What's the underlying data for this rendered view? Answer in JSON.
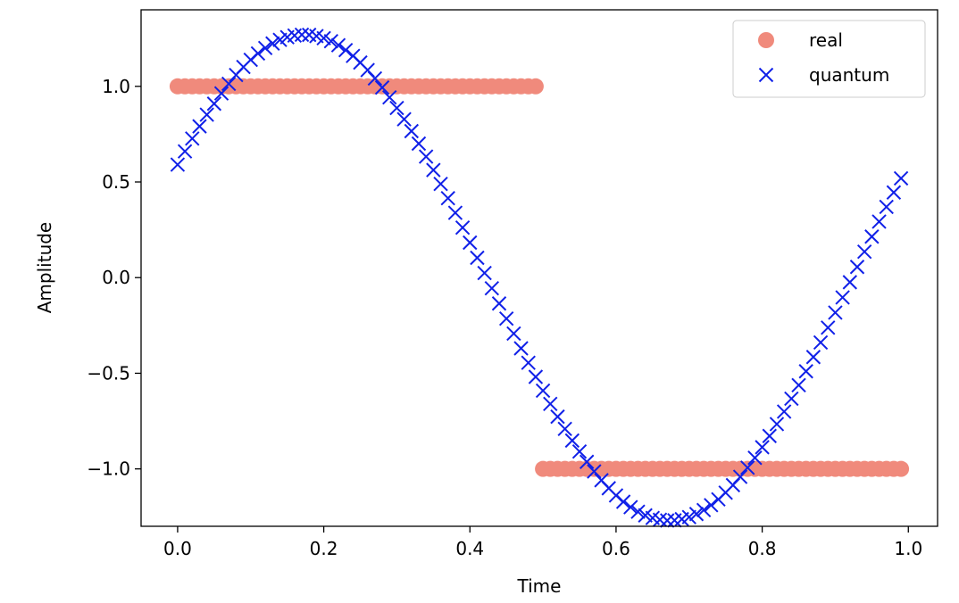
{
  "chart_data": {
    "type": "scatter",
    "title": "",
    "xlabel": "Time",
    "ylabel": "Amplitude",
    "xlim": [
      -0.05,
      1.04
    ],
    "ylim": [
      -1.3,
      1.4
    ],
    "xticks": [
      0.0,
      0.2,
      0.4,
      0.6,
      0.8,
      1.0
    ],
    "xtick_labels": [
      "0.0",
      "0.2",
      "0.4",
      "0.6",
      "0.8",
      "1.0"
    ],
    "yticks": [
      1.0,
      0.5,
      0.0,
      -0.5,
      -1.0
    ],
    "ytick_labels": [
      "1.0",
      "0.5",
      "0.0",
      "−0.5",
      "−1.0"
    ],
    "grid": false,
    "legend_position": "top-right",
    "series": [
      {
        "name": "real",
        "marker": "circle",
        "color": "#f08a7c",
        "x_start": 0.0,
        "x_step": 0.01,
        "count": 100,
        "rule": "square wave: 1.0 for x < 0.5, -1.0 for x >= 0.5"
      },
      {
        "name": "quantum",
        "marker": "x",
        "color": "#1020e8",
        "x_start": 0.0,
        "x_step": 0.01,
        "count": 100,
        "rule": "1.27 * sin(2*pi*(x + 0.077))"
      }
    ]
  }
}
